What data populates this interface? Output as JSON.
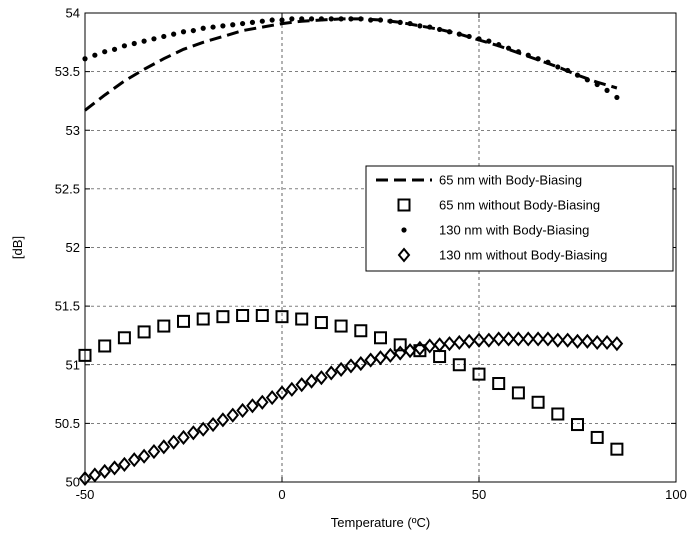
{
  "chart_data": {
    "type": "line",
    "xlabel": "Temperature (ºC)",
    "ylabel": "[dB]",
    "xlim": [
      -50,
      100
    ],
    "ylim": [
      50,
      54
    ],
    "xticks": [
      -50,
      0,
      50,
      100
    ],
    "yticks": [
      50,
      50.5,
      51,
      51.5,
      52,
      52.5,
      53,
      53.5,
      54
    ],
    "xtick_labels": [
      "-50",
      "0",
      "50",
      "100"
    ],
    "ytick_labels": [
      "50",
      "50.5",
      "51",
      "51.5",
      "52",
      "52.5",
      "53",
      "53.5",
      "54"
    ],
    "grid": true,
    "legend_position": "right",
    "series": [
      {
        "name": "65 nm with Body-Biasing",
        "style": "dashed-line",
        "color": "#000000",
        "x": [
          -50,
          -45,
          -40,
          -35,
          -30,
          -25,
          -20,
          -15,
          -10,
          -5,
          0,
          5,
          10,
          15,
          20,
          25,
          30,
          35,
          40,
          45,
          50,
          55,
          60,
          65,
          70,
          75,
          80,
          85
        ],
        "y": [
          53.17,
          53.3,
          53.42,
          53.52,
          53.61,
          53.69,
          53.75,
          53.8,
          53.85,
          53.88,
          53.91,
          53.93,
          53.94,
          53.95,
          53.95,
          53.94,
          53.92,
          53.89,
          53.86,
          53.82,
          53.77,
          53.72,
          53.66,
          53.6,
          53.54,
          53.47,
          53.41,
          53.36
        ]
      },
      {
        "name": "65 nm without Body-Biasing",
        "style": "square-marker",
        "color": "#000000",
        "x": [
          -50,
          -45,
          -40,
          -35,
          -30,
          -25,
          -20,
          -15,
          -10,
          -5,
          0,
          5,
          10,
          15,
          20,
          25,
          30,
          35,
          40,
          45,
          50,
          55,
          60,
          65,
          70,
          75,
          80,
          85
        ],
        "y": [
          51.08,
          51.16,
          51.23,
          51.28,
          51.33,
          51.37,
          51.39,
          51.41,
          51.42,
          51.42,
          51.41,
          51.39,
          51.36,
          51.33,
          51.29,
          51.23,
          51.17,
          51.12,
          51.07,
          51.0,
          50.92,
          50.84,
          50.76,
          50.68,
          50.58,
          50.49,
          50.38,
          50.28
        ]
      },
      {
        "name": "130 nm with Body-Biasing",
        "style": "star-marker",
        "color": "#000000",
        "x": [
          -50,
          -47.5,
          -45,
          -42.5,
          -40,
          -37.5,
          -35,
          -32.5,
          -30,
          -27.5,
          -25,
          -22.5,
          -20,
          -17.5,
          -15,
          -12.5,
          -10,
          -7.5,
          -5,
          -2.5,
          0,
          2.5,
          5,
          7.5,
          10,
          12.5,
          15,
          17.5,
          20,
          22.5,
          25,
          27.5,
          30,
          32.5,
          35,
          37.5,
          40,
          42.5,
          45,
          47.5,
          50,
          52.5,
          55,
          57.5,
          60,
          62.5,
          65,
          67.5,
          70,
          72.5,
          75,
          77.5,
          80,
          82.5,
          85
        ],
        "y": [
          53.61,
          53.64,
          53.67,
          53.69,
          53.72,
          53.74,
          53.76,
          53.78,
          53.8,
          53.82,
          53.84,
          53.85,
          53.87,
          53.88,
          53.89,
          53.9,
          53.91,
          53.92,
          53.93,
          53.94,
          53.94,
          53.95,
          53.95,
          53.95,
          53.95,
          53.95,
          53.95,
          53.95,
          53.95,
          53.94,
          53.94,
          53.93,
          53.92,
          53.91,
          53.89,
          53.88,
          53.86,
          53.84,
          53.82,
          53.8,
          53.78,
          53.76,
          53.73,
          53.7,
          53.67,
          53.64,
          53.61,
          53.58,
          53.54,
          53.51,
          53.47,
          53.43,
          53.39,
          53.34,
          53.28
        ]
      },
      {
        "name": "130 nm without Body-Biasing",
        "style": "diamond-marker",
        "color": "#000000",
        "x": [
          -50,
          -47.5,
          -45,
          -42.5,
          -40,
          -37.5,
          -35,
          -32.5,
          -30,
          -27.5,
          -25,
          -22.5,
          -20,
          -17.5,
          -15,
          -12.5,
          -10,
          -7.5,
          -5,
          -2.5,
          0,
          2.5,
          5,
          7.5,
          10,
          12.5,
          15,
          17.5,
          20,
          22.5,
          25,
          27.5,
          30,
          32.5,
          35,
          37.5,
          40,
          42.5,
          45,
          47.5,
          50,
          52.5,
          55,
          57.5,
          60,
          62.5,
          65,
          67.5,
          70,
          72.5,
          75,
          77.5,
          80,
          82.5,
          85
        ],
        "y": [
          50.03,
          50.06,
          50.09,
          50.12,
          50.15,
          50.19,
          50.22,
          50.26,
          50.3,
          50.34,
          50.38,
          50.42,
          50.45,
          50.49,
          50.53,
          50.57,
          50.61,
          50.65,
          50.68,
          50.72,
          50.76,
          50.79,
          50.83,
          50.86,
          50.89,
          50.93,
          50.96,
          50.99,
          51.01,
          51.04,
          51.06,
          51.08,
          51.1,
          51.12,
          51.14,
          51.16,
          51.17,
          51.18,
          51.19,
          51.2,
          51.21,
          51.21,
          51.22,
          51.22,
          51.22,
          51.22,
          51.22,
          51.22,
          51.21,
          51.21,
          51.2,
          51.2,
          51.19,
          51.19,
          51.18
        ]
      }
    ]
  }
}
